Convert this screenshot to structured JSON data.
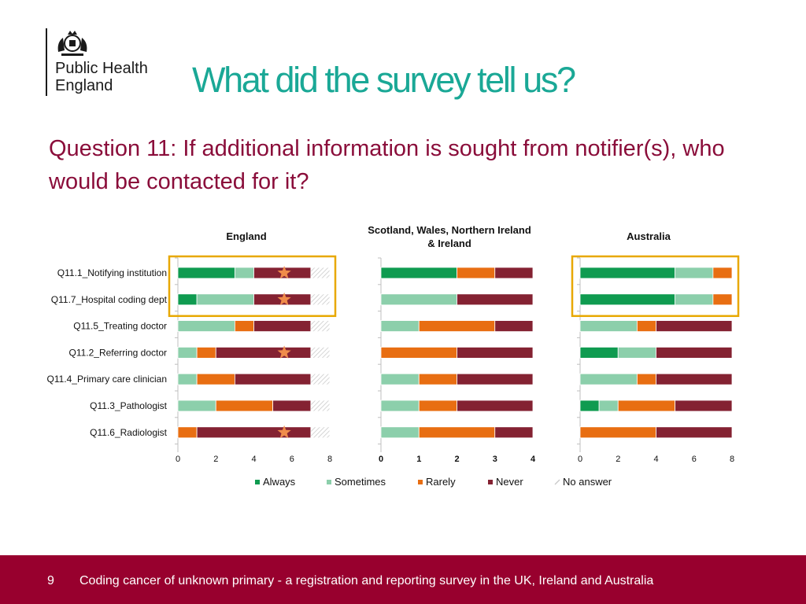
{
  "header": {
    "logo_line1": "Public Health",
    "logo_line2": "England",
    "title": "What did the survey tell us?"
  },
  "question": "Question 11: If additional information is sought from notifier(s), who would be contacted for it?",
  "footer": {
    "page_number": "9",
    "text": "Coding cancer of unknown primary - a registration and reporting survey in the UK, Ireland and Australia"
  },
  "colors": {
    "title": "#1aa896",
    "question": "#8a0d3a",
    "footer_bg": "#98002e",
    "always": "#0f9b50",
    "sometimes": "#8ccfab",
    "rarely": "#e86e12",
    "never": "#842232",
    "highlight_box": "#e8a800",
    "star": "#f08c4a"
  },
  "chart_data": [
    {
      "type": "bar",
      "orientation": "horizontal",
      "stacked": true,
      "title": "England",
      "categories": [
        "Q11.1_Notifying institution",
        "Q11.7_Hospital coding dept",
        "Q11.5_Treating doctor",
        "Q11.2_Referring doctor",
        "Q11.4_Primary care clinician",
        "Q11.3_Pathologist",
        "Q11.6_Radiologist"
      ],
      "series": [
        {
          "name": "Always",
          "values": [
            3,
            1,
            0,
            0,
            0,
            0,
            0
          ]
        },
        {
          "name": "Sometimes",
          "values": [
            1,
            3,
            3,
            1,
            1,
            2,
            0
          ]
        },
        {
          "name": "Rarely",
          "values": [
            0,
            0,
            1,
            1,
            2,
            3,
            1
          ]
        },
        {
          "name": "Never",
          "values": [
            3,
            3,
            3,
            5,
            4,
            2,
            6
          ]
        },
        {
          "name": "No answer",
          "values": [
            1,
            1,
            1,
            1,
            1,
            1,
            1
          ]
        }
      ],
      "xlim": [
        0,
        8
      ],
      "xticks": [
        "0",
        "2",
        "4",
        "6",
        "8"
      ],
      "stars": [
        true,
        true,
        false,
        true,
        false,
        false,
        true
      ],
      "highlight_rows": [
        0,
        1
      ]
    },
    {
      "type": "bar",
      "orientation": "horizontal",
      "stacked": true,
      "title": "Scotland, Wales, Northern Ireland & Ireland",
      "categories": [
        "Q11.1_Notifying institution",
        "Q11.7_Hospital coding dept",
        "Q11.5_Treating doctor",
        "Q11.2_Referring doctor",
        "Q11.4_Primary care clinician",
        "Q11.3_Pathologist",
        "Q11.6_Radiologist"
      ],
      "series": [
        {
          "name": "Always",
          "values": [
            2,
            0,
            0,
            0,
            0,
            0,
            0
          ]
        },
        {
          "name": "Sometimes",
          "values": [
            0,
            2,
            1,
            0,
            1,
            1,
            1
          ]
        },
        {
          "name": "Rarely",
          "values": [
            1,
            0,
            2,
            2,
            1,
            1,
            2
          ]
        },
        {
          "name": "Never",
          "values": [
            1,
            2,
            1,
            2,
            2,
            2,
            1
          ]
        },
        {
          "name": "No answer",
          "values": [
            0,
            0,
            0,
            0,
            0,
            0,
            0
          ]
        }
      ],
      "xlim": [
        0,
        4
      ],
      "xticks": [
        "0",
        "1",
        "2",
        "3",
        "4"
      ],
      "stars": [
        false,
        false,
        false,
        false,
        false,
        false,
        false
      ],
      "highlight_rows": []
    },
    {
      "type": "bar",
      "orientation": "horizontal",
      "stacked": true,
      "title": "Australia",
      "categories": [
        "Q11.1_Notifying institution",
        "Q11.7_Hospital coding dept",
        "Q11.5_Treating doctor",
        "Q11.2_Referring doctor",
        "Q11.4_Primary care clinician",
        "Q11.3_Pathologist",
        "Q11.6_Radiologist"
      ],
      "series": [
        {
          "name": "Always",
          "values": [
            5,
            5,
            0,
            2,
            0,
            1,
            0
          ]
        },
        {
          "name": "Sometimes",
          "values": [
            2,
            2,
            3,
            2,
            3,
            1,
            0
          ]
        },
        {
          "name": "Rarely",
          "values": [
            1,
            1,
            1,
            0,
            1,
            3,
            4
          ]
        },
        {
          "name": "Never",
          "values": [
            0,
            0,
            4,
            4,
            4,
            3,
            4
          ]
        },
        {
          "name": "No answer",
          "values": [
            0,
            0,
            0,
            0,
            0,
            0,
            0
          ]
        }
      ],
      "xlim": [
        0,
        8
      ],
      "xticks": [
        "0",
        "2",
        "4",
        "6",
        "8"
      ],
      "stars": [
        false,
        false,
        false,
        false,
        false,
        false,
        false
      ],
      "highlight_rows": [
        0,
        1
      ]
    }
  ],
  "legend": [
    "Always",
    "Sometimes",
    "Rarely",
    "Never",
    "No answer"
  ]
}
